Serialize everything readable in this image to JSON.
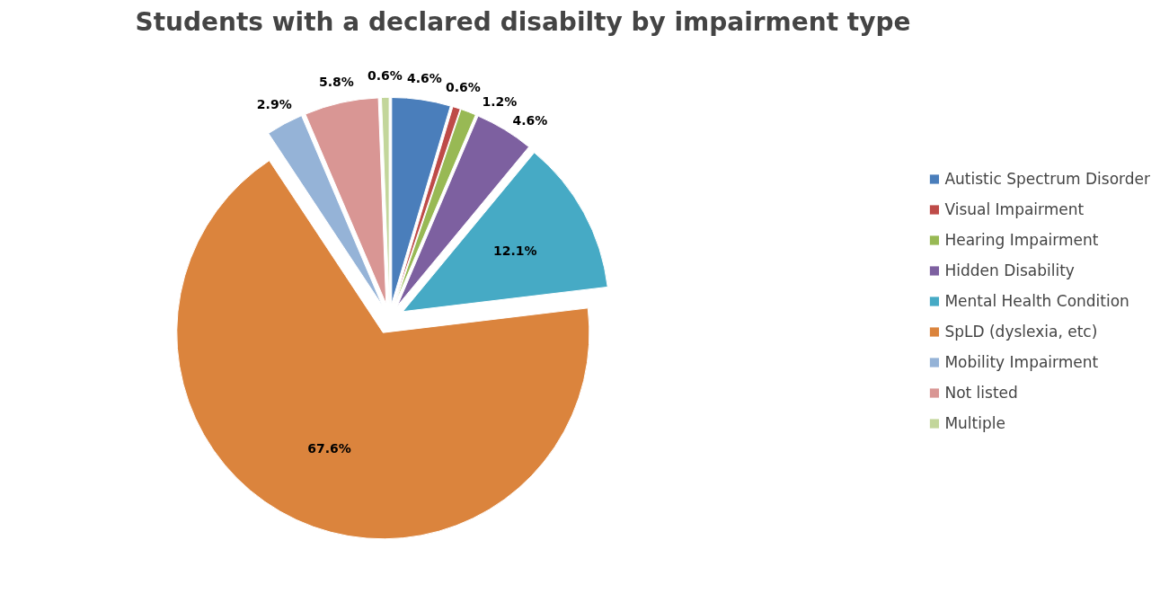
{
  "chart_data": {
    "type": "pie",
    "title": "Students with a declared disabilty by impairment type",
    "categories": [
      "Autistic Spectrum Disorder",
      "Visual Impairment",
      "Hearing Impairment",
      "Hidden Disability",
      "Mental Health Condition",
      "SpLD (dyslexia, etc)",
      "Mobility Impairment",
      "Not listed",
      "Multiple"
    ],
    "values": [
      4.6,
      0.6,
      1.2,
      4.6,
      12.1,
      67.6,
      2.9,
      5.8,
      0.6
    ],
    "value_labels": [
      "4.6%",
      "0.6%",
      "1.2%",
      "4.6%",
      "12.1%",
      "67.6%",
      "2.9%",
      "5.8%",
      "0.6%"
    ],
    "colors": [
      "#4a7ebb",
      "#be4b48",
      "#98b954",
      "#7d60a0",
      "#46aac5",
      "#db843d",
      "#95b3d7",
      "#d99694",
      "#c3d69b"
    ],
    "legend": "right"
  }
}
